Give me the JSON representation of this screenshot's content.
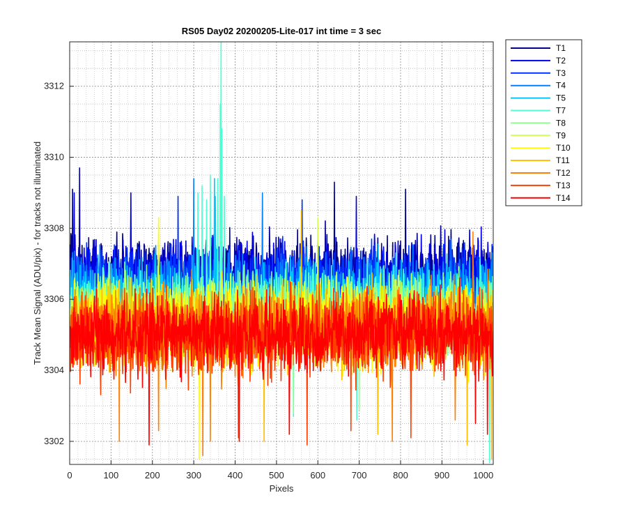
{
  "chart_data": {
    "type": "line",
    "title": "RS05 Day02 20200205-Lite-017 int time = 3 sec",
    "xlabel": "Pixels",
    "ylabel": "Track Mean Signal (ADU/pix) - for tracks not illuminated",
    "xlim": [
      0,
      1024
    ],
    "ylim": [
      3301.35,
      3313.25
    ],
    "x_ticks": [
      0,
      100,
      200,
      300,
      400,
      500,
      600,
      700,
      800,
      900,
      1000
    ],
    "y_ticks": [
      3302,
      3304,
      3306,
      3308,
      3310,
      3312
    ],
    "grid": "major and minor, dotted",
    "legend_position": "outside-right",
    "x_samples": "1 to 1024, one point per pixel",
    "series": [
      {
        "name": "T1",
        "color": "#00008f",
        "mean": 3306.7,
        "spread": 0.75,
        "spikes": [
          [
            24,
            3309.7
          ],
          [
            640,
            3309.3
          ],
          [
            812,
            3309.1
          ],
          [
            7,
            3309.1
          ]
        ]
      },
      {
        "name": "T2",
        "color": "#0000e0",
        "mean": 3306.6,
        "spread": 0.75,
        "spikes": [
          [
            148,
            3309.0
          ],
          [
            693,
            3308.9
          ],
          [
            11,
            3309.0
          ]
        ]
      },
      {
        "name": "T3",
        "color": "#0032ff",
        "mean": 3306.4,
        "spread": 0.75,
        "spikes": [
          [
            262,
            3308.9
          ],
          [
            562,
            3308.8
          ]
        ]
      },
      {
        "name": "T4",
        "color": "#0080ff",
        "mean": 3306.2,
        "spread": 0.75,
        "spikes": [
          [
            300,
            3309.4
          ],
          [
            466,
            3309.0
          ]
        ]
      },
      {
        "name": "T5",
        "color": "#00c7ff",
        "mean": 3306.0,
        "spread": 0.75,
        "spikes": [
          [
            350,
            3309.4
          ],
          [
            352,
            3308.9
          ]
        ]
      },
      {
        "name": "T7",
        "color": "#4dffd2",
        "mean": 3305.8,
        "spread": 0.75,
        "spikes": [
          [
            366,
            3313.25
          ],
          [
            364,
            3311.5
          ],
          [
            368,
            3310.8
          ],
          [
            340,
            3309.5
          ],
          [
            310,
            3309.0
          ],
          [
            320,
            3309.2
          ],
          [
            331,
            3308.8
          ],
          [
            358,
            3309.4
          ],
          [
            374,
            3308.9
          ],
          [
            541,
            3302.7
          ],
          [
            694,
            3302.6
          ],
          [
            1015,
            3301.4
          ]
        ]
      },
      {
        "name": "T8",
        "color": "#8fff8f",
        "mean": 3305.6,
        "spread": 0.75,
        "spikes": [
          [
            541,
            3302.8
          ],
          [
            700,
            3302.9
          ]
        ]
      },
      {
        "name": "T9",
        "color": "#d2ff4d",
        "mean": 3305.4,
        "spread": 0.75,
        "spikes": [
          [
            600,
            3308.3
          ]
        ]
      },
      {
        "name": "T10",
        "color": "#ffff00",
        "mean": 3305.3,
        "spread": 0.8,
        "spikes": [
          [
            313,
            3301.5
          ],
          [
            215,
            3308.3
          ]
        ]
      },
      {
        "name": "T11",
        "color": "#ffbf00",
        "mean": 3305.2,
        "spread": 0.8,
        "spikes": [
          [
            560,
            3308.5
          ],
          [
            470,
            3302.0
          ],
          [
            745,
            3302.2
          ],
          [
            961,
            3301.9
          ],
          [
            1020,
            3301.5
          ]
        ]
      },
      {
        "name": "T12",
        "color": "#ff7f00",
        "mean": 3305.1,
        "spread": 0.8,
        "spikes": [
          [
            322,
            3301.6
          ],
          [
            120,
            3302.0
          ],
          [
            215,
            3302.3
          ],
          [
            340,
            3302.0
          ],
          [
            780,
            3302.0
          ],
          [
            932,
            3302.6
          ],
          [
            975,
            3307.9
          ]
        ]
      },
      {
        "name": "T13",
        "color": "#ff3f00",
        "mean": 3305.0,
        "spread": 0.8,
        "spikes": [
          [
            574,
            3301.9
          ],
          [
            825,
            3302.1
          ],
          [
            680,
            3302.3
          ],
          [
            408,
            3302.1
          ]
        ]
      },
      {
        "name": "T14",
        "color": "#ff0000",
        "mean": 3305.0,
        "spread": 0.75,
        "spikes": [
          [
            192,
            3301.9
          ],
          [
            531,
            3302.2
          ],
          [
            410,
            3302.0
          ],
          [
            1010,
            3302.2
          ],
          [
            981,
            3302.5
          ]
        ]
      }
    ]
  }
}
